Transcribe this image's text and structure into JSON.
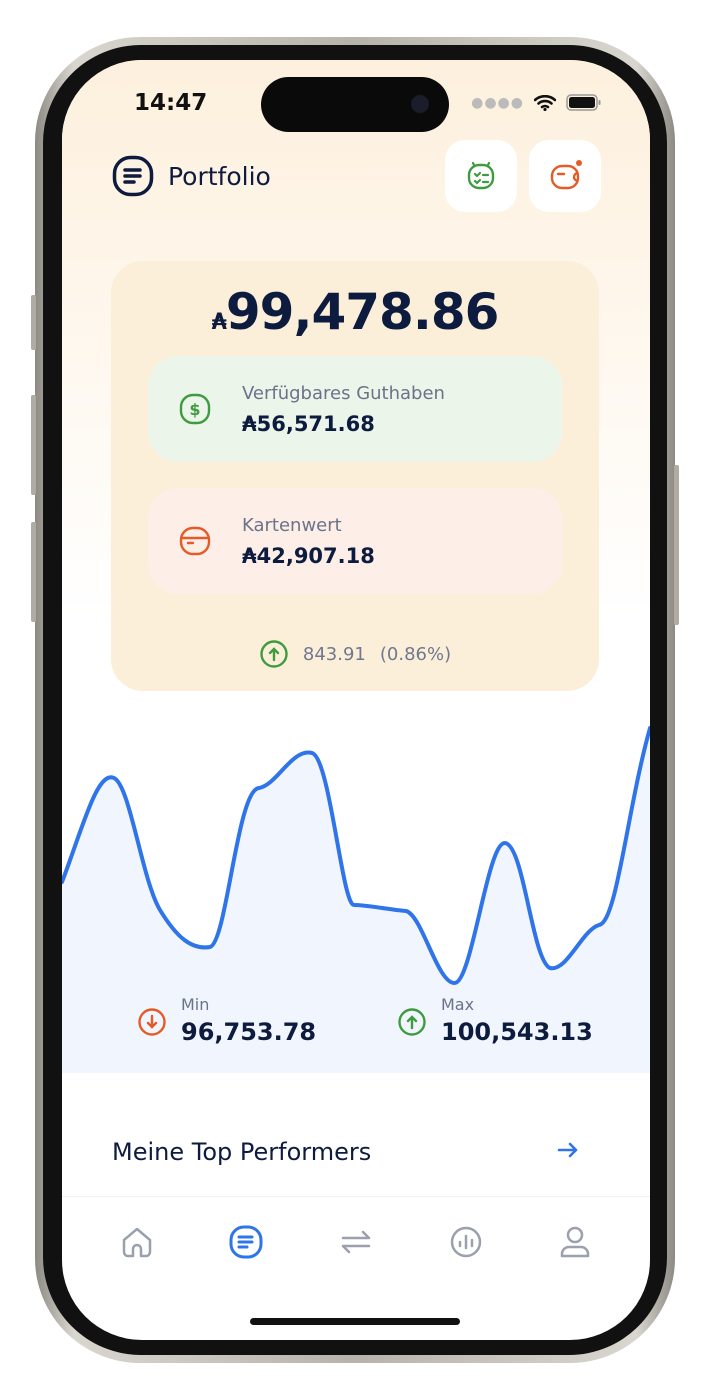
{
  "status_bar": {
    "time": "14:47"
  },
  "header": {
    "title": "Portfolio",
    "buttons": [
      {
        "icon": "checklist-icon",
        "color": "#3f9b3f"
      },
      {
        "icon": "wallet-icon",
        "color": "#e65a26",
        "badge": true
      }
    ]
  },
  "portfolio": {
    "currency": "₳",
    "total": "99,478.86",
    "available": {
      "label": "Verfügbares Guthaben",
      "value": "₳56,571.68",
      "icon": "dollar-icon",
      "color": "#3f9b3f"
    },
    "card_value": {
      "label": "Kartenwert",
      "value": "₳42,907.18",
      "icon": "card-icon",
      "color": "#e65a26"
    },
    "change": {
      "amount": "843.91",
      "percent": "(0.86%)",
      "direction": "up"
    }
  },
  "chart": {
    "line_color": "#2f74e8",
    "fill_color": "#f1f5fd",
    "min": {
      "label": "Min",
      "value": "96,753.78"
    },
    "max": {
      "label": "Max",
      "value": "100,543.13"
    }
  },
  "top_performers": {
    "title": "Meine Top Performers"
  },
  "tabbar": {
    "active": "portfolio",
    "items": [
      "home",
      "portfolio",
      "transfer",
      "analytics",
      "profile"
    ]
  }
}
